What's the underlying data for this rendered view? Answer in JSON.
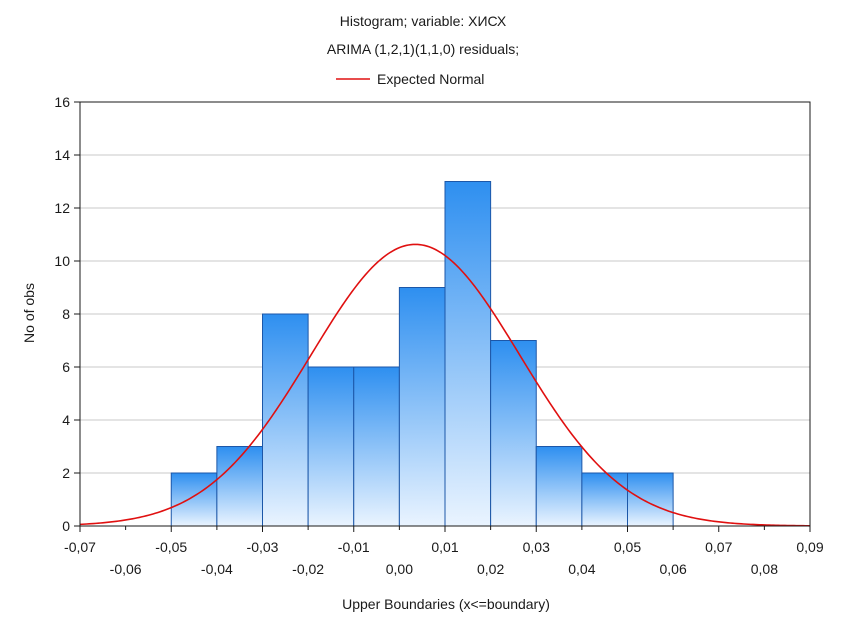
{
  "chart_data": {
    "type": "histogram",
    "title_line1": "Histogram; variable: ХИСХ",
    "title_line2": "ARIMA (1,2,1)(1,1,0) residuals;",
    "legend": [
      {
        "label": "Expected Normal",
        "color": "#e01010"
      }
    ],
    "xlabel": "Upper Boundaries (x<=boundary)",
    "ylabel": "No of obs",
    "xlim": [
      -0.07,
      0.09
    ],
    "ylim": [
      0,
      16
    ],
    "yticks": [
      0,
      2,
      4,
      6,
      8,
      10,
      12,
      14,
      16
    ],
    "ytick_labels": [
      "0",
      "2",
      "4",
      "6",
      "8",
      "10",
      "12",
      "14",
      "16"
    ],
    "xticks_row1": [
      -0.07,
      -0.05,
      -0.03,
      -0.01,
      0.01,
      0.03,
      0.05,
      0.07,
      0.09
    ],
    "xtick_labels_row1": [
      "-0,07",
      "-0,05",
      "-0,03",
      "-0,01",
      "0,01",
      "0,03",
      "0,05",
      "0,07",
      "0,09"
    ],
    "xticks_row2": [
      -0.06,
      -0.04,
      -0.02,
      0.0,
      0.02,
      0.04,
      0.06,
      0.08
    ],
    "xtick_labels_row2": [
      "-0,06",
      "-0,04",
      "-0,02",
      "0,00",
      "0,02",
      "0,04",
      "0,06",
      "0,08"
    ],
    "bins": [
      {
        "from": -0.05,
        "to": -0.04,
        "count": 2
      },
      {
        "from": -0.04,
        "to": -0.03,
        "count": 3
      },
      {
        "from": -0.03,
        "to": -0.02,
        "count": 8
      },
      {
        "from": -0.02,
        "to": -0.01,
        "count": 6
      },
      {
        "from": -0.01,
        "to": 0.0,
        "count": 6
      },
      {
        "from": 0.0,
        "to": 0.01,
        "count": 9
      },
      {
        "from": 0.01,
        "to": 0.02,
        "count": 13
      },
      {
        "from": 0.02,
        "to": 0.03,
        "count": 7
      },
      {
        "from": 0.03,
        "to": 0.04,
        "count": 3
      },
      {
        "from": 0.04,
        "to": 0.05,
        "count": 2
      },
      {
        "from": 0.05,
        "to": 0.06,
        "count": 2
      }
    ],
    "expected_normal": {
      "mean": 0.0035,
      "sd": 0.0229,
      "n": 61,
      "bin_width": 0.01
    },
    "grid": true,
    "colors": {
      "bar_top": "#2e8ff0",
      "bar_bottom": "#eaf4ff",
      "bar_edge": "#1c57a8",
      "curve": "#e01010",
      "grid": "#c9c9c9"
    }
  }
}
